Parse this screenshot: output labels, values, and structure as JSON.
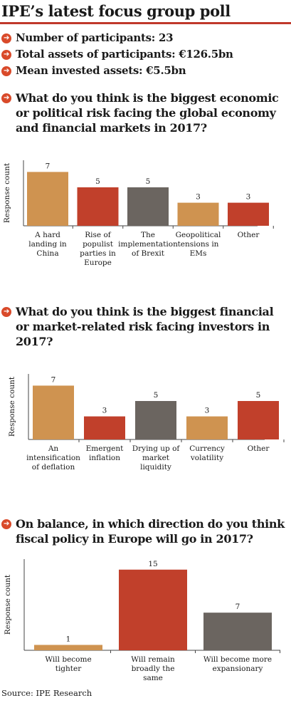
{
  "title": "IPE’s latest focus group poll",
  "stats": [
    {
      "label": "Number of participants: 23"
    },
    {
      "label": "Total assets of participants: €126.5bn"
    },
    {
      "label": "Mean invested assets: €5.5bn"
    }
  ],
  "bullet_icon": "arrow-right-circle-icon",
  "colors": {
    "orange": "#cf9350",
    "red": "#c1402b",
    "grey": "#6b6560",
    "accent": "#d94a2a"
  },
  "ylabel": "Response count",
  "source": "Source: IPE Research",
  "chart_data": [
    {
      "type": "bar",
      "question": "What do you think is the biggest economic or political risk facing the global economy and financial markets in 2017?",
      "ylabel": "Response count",
      "categories": [
        "A hard landing in China",
        "Rise of populist parties in Europe",
        "The implementation of Brexit",
        "Geopolitical tensions in EMs",
        "Other"
      ],
      "category_lines": [
        [
          "A hard",
          "landing in",
          "China"
        ],
        [
          "Rise of",
          "populist",
          "parties in",
          "Europe"
        ],
        [
          "The",
          "implementation",
          "of Brexit"
        ],
        [
          "Geopolitical",
          "tensions in",
          "EMs"
        ],
        [
          "Other"
        ]
      ],
      "values": [
        7,
        5,
        5,
        3,
        3
      ],
      "colors": [
        "#cf9350",
        "#c1402b",
        "#6b6560",
        "#cf9350",
        "#c1402b"
      ]
    },
    {
      "type": "bar",
      "question": "What do you think is the biggest financial or market-related risk facing investors in 2017?",
      "ylabel": "Response count",
      "categories": [
        "An intensification of deflation",
        "Emergent inflation",
        "Drying up of market liquidity",
        "Currency volatility",
        "Other"
      ],
      "category_lines": [
        [
          "An",
          "intensification",
          "of deflation"
        ],
        [
          "Emergent",
          "inflation"
        ],
        [
          "Drying up of",
          "market",
          "liquidity"
        ],
        [
          "Currency",
          "volatility"
        ],
        [
          "Other"
        ]
      ],
      "values": [
        7,
        3,
        5,
        3,
        5
      ],
      "colors": [
        "#cf9350",
        "#c1402b",
        "#6b6560",
        "#cf9350",
        "#c1402b"
      ]
    },
    {
      "type": "bar",
      "question": "On balance, in which direction do you think fiscal policy in Europe will go in 2017?",
      "ylabel": "Response count",
      "categories": [
        "Will become tighter",
        "Will remain broadly the same",
        "Will become more expansionary"
      ],
      "category_lines": [
        [
          "Will become",
          "tighter"
        ],
        [
          "Will remain",
          "broadly the",
          "same"
        ],
        [
          "Will become more",
          "expansionary"
        ]
      ],
      "values": [
        1,
        15,
        7
      ],
      "colors": [
        "#cf9350",
        "#c1402b",
        "#6b6560"
      ]
    }
  ]
}
